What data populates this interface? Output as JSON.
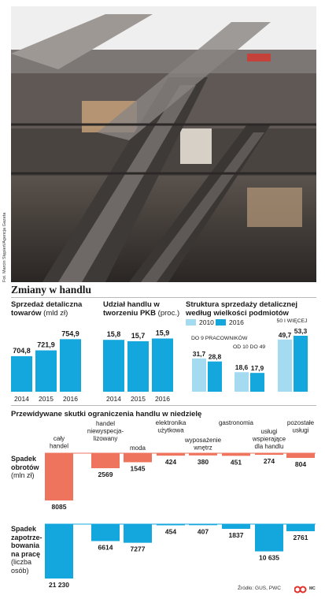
{
  "photo": {
    "credit": "Fot. Marcin Stępień/Agencja Gazeta",
    "description_icon": "mall-escalators-photo"
  },
  "title": "Zmiany w handlu",
  "colors": {
    "blue": "#14a7de",
    "light_blue": "#a5dbf1",
    "salmon": "#ef745d",
    "text": "#1a1a1a",
    "logo_red": "#e4302a"
  },
  "panels": {
    "sales": {
      "title_bold": "Sprzedaż detaliczna towarów",
      "title_unit": "(mld zł)"
    },
    "gdp": {
      "title_bold": "Udział handlu w tworzeniu PKB",
      "title_unit": "(proc.)"
    },
    "structure": {
      "title_bold": "Struktura sprzedaży detalicznej według wielkości podmiotów"
    }
  },
  "effects": {
    "section_title": "Przewidywane skutki ograniczenia handlu w niedzielę",
    "row1_label_bold": "Spadek obrotów",
    "row1_label_unit": "(mln zł)",
    "row2_label_bold": "Spadek zapotrze-bowania na pracę",
    "row2_label_unit": "(liczba osób)"
  },
  "footer": {
    "source": "Źródło: GUS, PWC",
    "brand": "MC",
    "logo_icon": "gazeta-logo-icon"
  },
  "chart_data": [
    {
      "type": "bar",
      "title": "Sprzedaż detaliczna towarów (mld zł)",
      "categories": [
        "2014",
        "2015",
        "2016"
      ],
      "values": [
        704.8,
        721.9,
        754.9
      ],
      "labels": [
        "704,8",
        "721,9",
        "754,9"
      ],
      "color": "#14a7de"
    },
    {
      "type": "bar",
      "title": "Udział handlu w tworzeniu PKB (proc.)",
      "categories": [
        "2014",
        "2015",
        "2016"
      ],
      "values": [
        15.8,
        15.7,
        15.9
      ],
      "labels": [
        "15,8",
        "15,7",
        "15,9"
      ],
      "color": "#14a7de"
    },
    {
      "type": "bar",
      "title": "Struktura sprzedaży detalicznej według wielkości podmiotów",
      "legend": [
        "2010",
        "2016"
      ],
      "categories": [
        "DO 9 PRACOWNIKÓW",
        "OD 10 DO 49",
        "50 I WIĘCEJ"
      ],
      "series": [
        {
          "name": "2010",
          "values": [
            31.7,
            18.6,
            49.7
          ],
          "labels": [
            "31,7",
            "18,6",
            "49,7"
          ],
          "color": "#a5dbf1"
        },
        {
          "name": "2016",
          "values": [
            28.8,
            17.9,
            53.3
          ],
          "labels": [
            "28,8",
            "17,9",
            "53,3"
          ],
          "color": "#14a7de"
        }
      ],
      "ylim": [
        0,
        60
      ]
    },
    {
      "type": "bar",
      "title": "Przewidywane skutki ograniczenia handlu w niedzielę",
      "categories": [
        "cały handel",
        "handel niewyspecja-lizowany",
        "moda",
        "elektronika użytkowa",
        "wyposażenie wnętrz",
        "gastronomia",
        "usługi wspierające dla handlu",
        "pozostałe usługi"
      ],
      "series": [
        {
          "name": "Spadek obrotów (mln zł)",
          "values": [
            8085,
            2569,
            1545,
            424,
            380,
            451,
            274,
            804
          ],
          "labels": [
            "8085",
            "2569",
            "1545",
            "424",
            "380",
            "451",
            "274",
            "804"
          ],
          "color": "#ef745d"
        },
        {
          "name": "Spadek zapotrzebowania na pracę (liczba osób)",
          "values": [
            21230,
            6614,
            7277,
            454,
            407,
            1837,
            10635,
            2761
          ],
          "labels": [
            "21 230",
            "6614",
            "7277",
            "454",
            "407",
            "1837",
            "10 635",
            "2761"
          ],
          "color": "#14a7de"
        }
      ]
    }
  ]
}
